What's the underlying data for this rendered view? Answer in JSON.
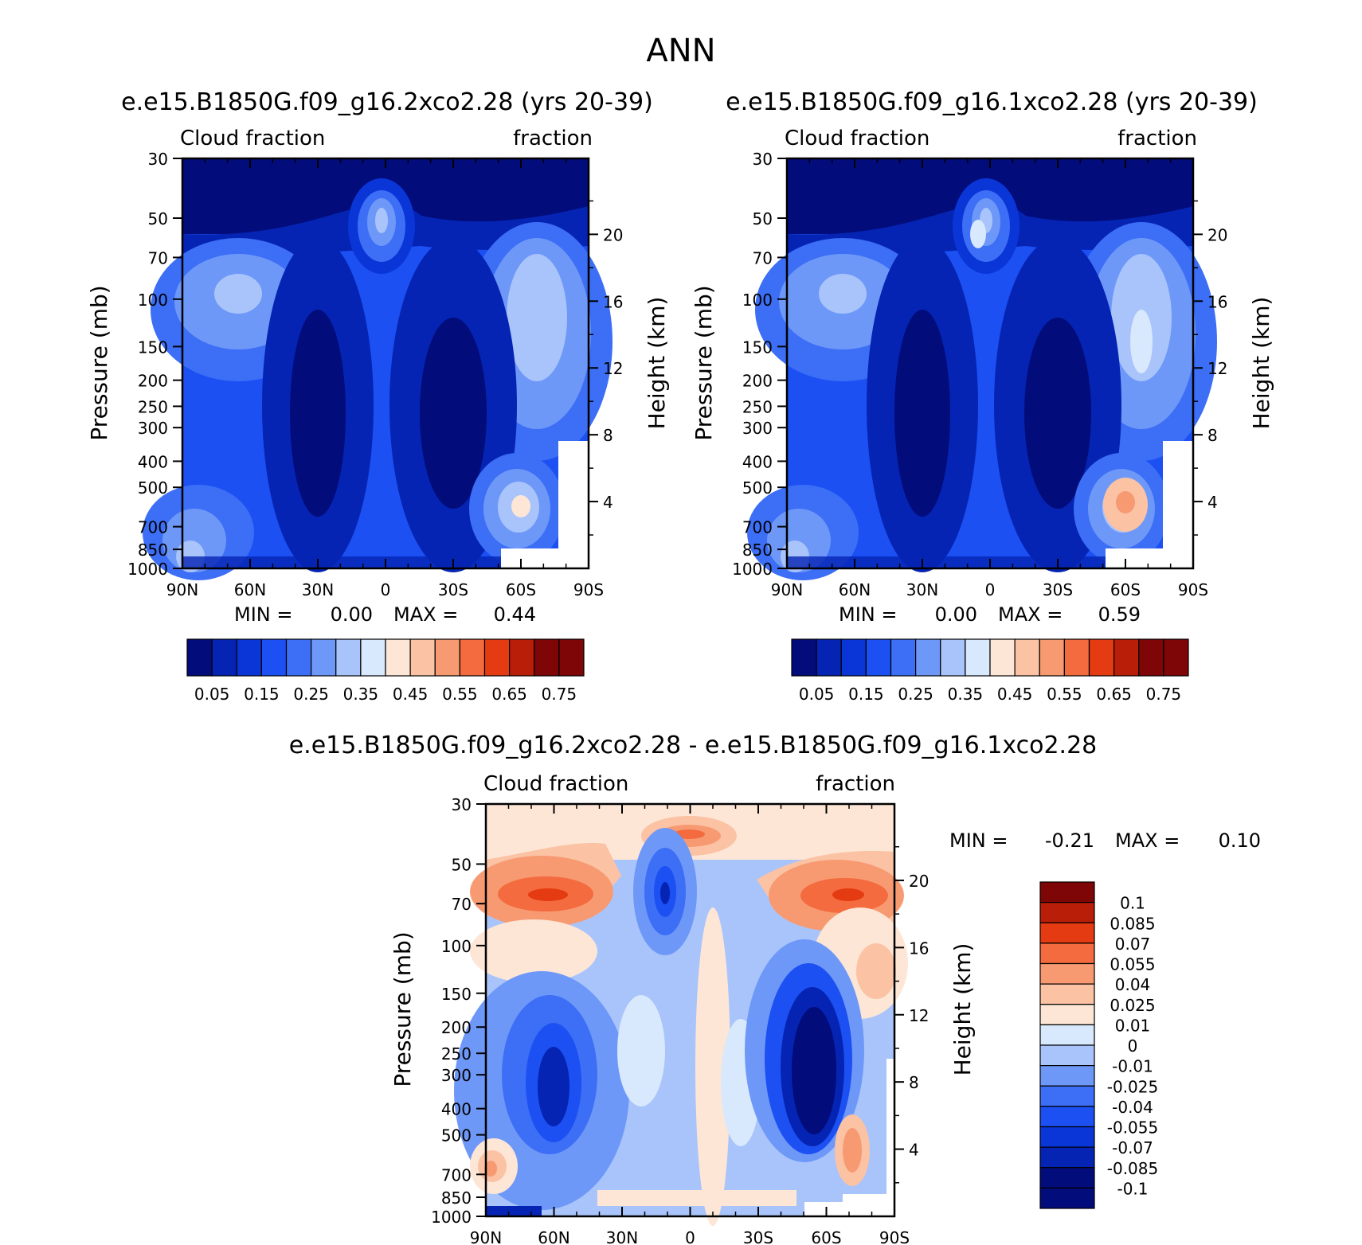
{
  "figure_title": "ANN",
  "colors": {
    "frame": "#000000",
    "absolute_scale": [
      "#020c7a",
      "#0524b4",
      "#0a36d8",
      "#1c50f2",
      "#3c6ef6",
      "#6e98f8",
      "#a9c4fb",
      "#d8e8fd",
      "#fde6d6",
      "#fbc2a4",
      "#f79a72",
      "#f36b3e",
      "#e43b12",
      "#b81e08",
      "#7e0606"
    ],
    "diff_scale": [
      "#020c7a",
      "#0524b4",
      "#0a36d8",
      "#1c50f2",
      "#3c6ef6",
      "#6e98f8",
      "#a9c4fb",
      "#d8e8fd",
      "#fde6d6",
      "#fbc2a4",
      "#f79a72",
      "#f36b3e",
      "#e43b12",
      "#b81e08",
      "#7e0606"
    ]
  },
  "chart_data": [
    {
      "type": "heatmap",
      "id": "left",
      "title": "e.e15.B1850G.f09_g16.2xco2.28 (yrs 20-39)",
      "left_label": "Cloud fraction",
      "right_label": "fraction",
      "xlabel": "",
      "ylabel": "Pressure (mb)",
      "y2label": "Height (km)",
      "x_ticks": [
        "90N",
        "60N",
        "30N",
        "0",
        "30S",
        "60S",
        "90S"
      ],
      "x_values": [
        90,
        60,
        30,
        0,
        -30,
        -60,
        -90
      ],
      "y_ticks": [
        "30",
        "50",
        "70",
        "100",
        "150",
        "200",
        "250",
        "300",
        "400",
        "500",
        "700",
        "850",
        "1000"
      ],
      "y_values": [
        30,
        50,
        70,
        100,
        150,
        200,
        250,
        300,
        400,
        500,
        700,
        850,
        1000
      ],
      "y2_ticks": [
        "20",
        "16",
        "12",
        "8",
        "4"
      ],
      "y2_values": [
        20,
        16,
        12,
        8,
        4
      ],
      "ylim": [
        1000,
        30
      ],
      "min_label": "MIN =",
      "min_value": "0.00",
      "max_label": "MAX =",
      "max_value": "0.44",
      "min": 0.0,
      "max": 0.44,
      "colorbar_labels": [
        "0.05",
        "0.15",
        "0.25",
        "0.35",
        "0.45",
        "0.55",
        "0.65",
        "0.75"
      ],
      "colorbar_levels": [
        0.05,
        0.1,
        0.15,
        0.2,
        0.25,
        0.3,
        0.35,
        0.4,
        0.45,
        0.5,
        0.55,
        0.6,
        0.65,
        0.7,
        0.75
      ]
    },
    {
      "type": "heatmap",
      "id": "right",
      "title": "e.e15.B1850G.f09_g16.1xco2.28 (yrs 20-39)",
      "left_label": "Cloud fraction",
      "right_label": "fraction",
      "xlabel": "",
      "ylabel": "Pressure (mb)",
      "y2label": "Height (km)",
      "x_ticks": [
        "90N",
        "60N",
        "30N",
        "0",
        "30S",
        "60S",
        "90S"
      ],
      "x_values": [
        90,
        60,
        30,
        0,
        -30,
        -60,
        -90
      ],
      "y_ticks": [
        "30",
        "50",
        "70",
        "100",
        "150",
        "200",
        "250",
        "300",
        "400",
        "500",
        "700",
        "850",
        "1000"
      ],
      "y_values": [
        30,
        50,
        70,
        100,
        150,
        200,
        250,
        300,
        400,
        500,
        700,
        850,
        1000
      ],
      "y2_ticks": [
        "20",
        "16",
        "12",
        "8",
        "4"
      ],
      "y2_values": [
        20,
        16,
        12,
        8,
        4
      ],
      "ylim": [
        1000,
        30
      ],
      "min_label": "MIN =",
      "min_value": "0.00",
      "max_label": "MAX =",
      "max_value": "0.59",
      "min": 0.0,
      "max": 0.59,
      "colorbar_labels": [
        "0.05",
        "0.15",
        "0.25",
        "0.35",
        "0.45",
        "0.55",
        "0.65",
        "0.75"
      ],
      "colorbar_levels": [
        0.05,
        0.1,
        0.15,
        0.2,
        0.25,
        0.3,
        0.35,
        0.4,
        0.45,
        0.5,
        0.55,
        0.6,
        0.65,
        0.7,
        0.75
      ]
    },
    {
      "type": "heatmap",
      "id": "diff",
      "title": "e.e15.B1850G.f09_g16.2xco2.28 - e.e15.B1850G.f09_g16.1xco2.28",
      "left_label": "Cloud fraction",
      "right_label": "fraction",
      "xlabel": "",
      "ylabel": "Pressure (mb)",
      "y2label": "Height (km)",
      "x_ticks": [
        "90N",
        "60N",
        "30N",
        "0",
        "30S",
        "60S",
        "90S"
      ],
      "x_values": [
        90,
        60,
        30,
        0,
        -30,
        -60,
        -90
      ],
      "y_ticks": [
        "30",
        "50",
        "70",
        "100",
        "150",
        "200",
        "250",
        "300",
        "400",
        "500",
        "700",
        "850",
        "1000"
      ],
      "y_values": [
        30,
        50,
        70,
        100,
        150,
        200,
        250,
        300,
        400,
        500,
        700,
        850,
        1000
      ],
      "y2_ticks": [
        "20",
        "16",
        "12",
        "8",
        "4"
      ],
      "y2_values": [
        20,
        16,
        12,
        8,
        4
      ],
      "ylim": [
        1000,
        30
      ],
      "min_label": "MIN =",
      "min_value": "-0.21",
      "max_label": "MAX =",
      "max_value": "0.10",
      "min": -0.21,
      "max": 0.1,
      "colorbar_labels": [
        "0.1",
        "0.085",
        "0.07",
        "0.055",
        "0.04",
        "0.025",
        "0.01",
        "0",
        "-0.01",
        "-0.025",
        "-0.04",
        "-0.055",
        "-0.07",
        "-0.085",
        "-0.1"
      ],
      "colorbar_levels": [
        0.1,
        0.085,
        0.07,
        0.055,
        0.04,
        0.025,
        0.01,
        0,
        -0.01,
        -0.025,
        -0.04,
        -0.055,
        -0.07,
        -0.085,
        -0.1
      ]
    }
  ]
}
